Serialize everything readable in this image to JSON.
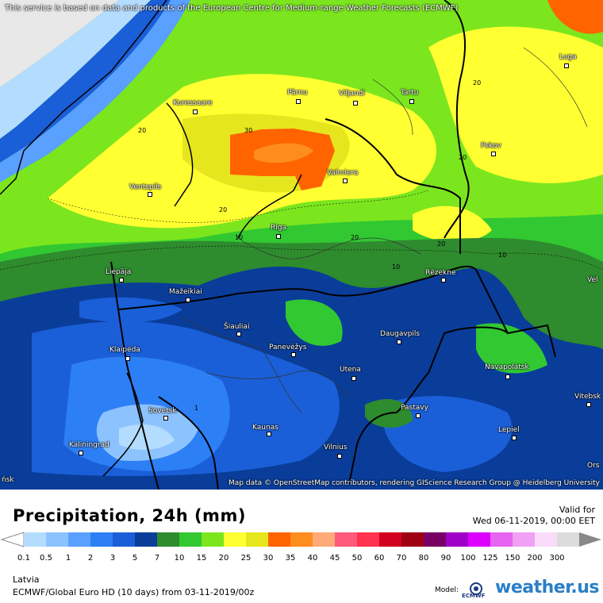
{
  "disclaimer": "This service is based on data and products of the European Centre for Medium-range Weather Forecasts (ECMWF)",
  "attribution": "Map data © OpenStreetMap contributors, rendering GIScience Research Group @ Heidelberg University",
  "title": "Precipitation, 24h (mm)",
  "valid_for_label": "Valid for",
  "valid_date": "Wed 06-11-2019, 00:00 EET",
  "region": "Latvia",
  "model_info": "ECMWF/Global Euro HD (10 days) from  03-11-2019/00z",
  "model_label": "Model:",
  "ecmwf_label": "ECMWF",
  "brand_name": "weather.us",
  "cities": {
    "luga": "Luga",
    "kuressaare": "Kuressaare",
    "parnu": "Pärnu",
    "viljandi": "Viljandi",
    "tartu": "Tartu",
    "pskov": "Pskov",
    "valmiera": "Valmiera",
    "ventspils": "Ventspils",
    "riga": "Riga",
    "rezekne": "Rēzekne",
    "liepaja": "Liepāja",
    "mazeikiai": "Mažeikiai",
    "siauliai": "Šiauliai",
    "daugavpils": "Daugavpils",
    "klaipeda": "Klaipėda",
    "panevezys": "Panevėžys",
    "utena": "Utena",
    "navapolatsk": "Navapolatsk",
    "vitebsk": "Vitebsk",
    "sovetsk": "Sovetsk",
    "pastavy": "Pastavy",
    "kaunas": "Kaunas",
    "lepiel": "Lepiel",
    "kaliningrad": "Kaliningrad",
    "vilnius": "Vilnius",
    "vel_partial": "Vel",
    "orsha_partial": "Ors",
    "edge_partial": "ńsk"
  },
  "contour_labels": {
    "l20_a": "20",
    "l30": "30",
    "l20_b": "20",
    "l20_c": "20",
    "l20_d": "20",
    "l10_a": "10",
    "l20_e": "20",
    "l10_b": "10",
    "l20_f": "20",
    "l10_c": "10",
    "l1": "1"
  },
  "legend": {
    "ticks": [
      "0.1",
      "0.5",
      "1",
      "2",
      "3",
      "5",
      "7",
      "10",
      "15",
      "20",
      "25",
      "30",
      "35",
      "40",
      "45",
      "50",
      "60",
      "70",
      "80",
      "90",
      "100",
      "125",
      "150",
      "200",
      "300"
    ],
    "colors": [
      "#b4dcff",
      "#8cc3ff",
      "#5aa0ff",
      "#2d7ff5",
      "#1a5fd8",
      "#0a3d99",
      "#2e8b2e",
      "#32c832",
      "#7be61e",
      "#ffff32",
      "#e6e61e",
      "#ff6400",
      "#ff8c1e",
      "#ffaa78",
      "#ff5a7a",
      "#ff3250",
      "#d2001e",
      "#a00014",
      "#780064",
      "#a000c8",
      "#dc00ff",
      "#e664f0",
      "#f0a0f5",
      "#fadcfa",
      "#dcdcdc"
    ]
  }
}
